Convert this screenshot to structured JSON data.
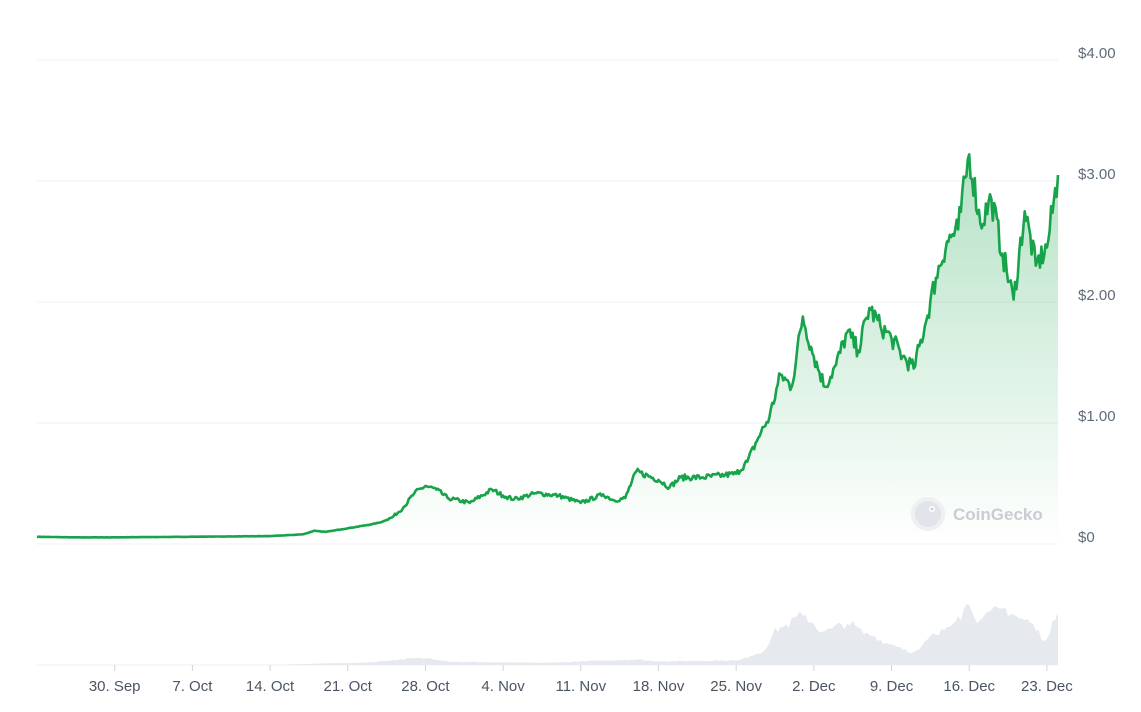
{
  "chart_data": {
    "type": "area",
    "watermark": "CoinGecko",
    "ylim": [
      0,
      4
    ],
    "y_ticks": [
      {
        "value": 0,
        "label": "$0"
      },
      {
        "value": 1,
        "label": "$1.00"
      },
      {
        "value": 2,
        "label": "$2.00"
      },
      {
        "value": 3,
        "label": "$3.00"
      },
      {
        "value": 4,
        "label": "$4.00"
      }
    ],
    "x_range": [
      "2024-09-23",
      "2024-12-24"
    ],
    "x_ticks": [
      {
        "date": "2024-09-30",
        "label": "30. Sep"
      },
      {
        "date": "2024-10-07",
        "label": "7. Oct"
      },
      {
        "date": "2024-10-14",
        "label": "14. Oct"
      },
      {
        "date": "2024-10-21",
        "label": "21. Oct"
      },
      {
        "date": "2024-10-28",
        "label": "28. Oct"
      },
      {
        "date": "2024-11-04",
        "label": "4. Nov"
      },
      {
        "date": "2024-11-11",
        "label": "11. Nov"
      },
      {
        "date": "2024-11-18",
        "label": "18. Nov"
      },
      {
        "date": "2024-11-25",
        "label": "25. Nov"
      },
      {
        "date": "2024-12-02",
        "label": "2. Dec"
      },
      {
        "date": "2024-12-09",
        "label": "9. Dec"
      },
      {
        "date": "2024-12-16",
        "label": "16. Dec"
      },
      {
        "date": "2024-12-23",
        "label": "23. Dec"
      }
    ],
    "grid": true,
    "colors": {
      "line": "#16a34a",
      "area_top": "#16a34a",
      "volume": "#e6e9ee",
      "grid": "#eef0f3"
    },
    "price_series": {
      "name": "",
      "points": [
        [
          "2024-09-23",
          0.06
        ],
        [
          "2024-09-26",
          0.055
        ],
        [
          "2024-09-30",
          0.055
        ],
        [
          "2024-10-07",
          0.06
        ],
        [
          "2024-10-14",
          0.065
        ],
        [
          "2024-10-17",
          0.08
        ],
        [
          "2024-10-18",
          0.11
        ],
        [
          "2024-10-19",
          0.1
        ],
        [
          "2024-10-21",
          0.13
        ],
        [
          "2024-10-23",
          0.16
        ],
        [
          "2024-10-24",
          0.18
        ],
        [
          "2024-10-25",
          0.22
        ],
        [
          "2024-10-26",
          0.3
        ],
        [
          "2024-10-27",
          0.42
        ],
        [
          "2024-10-28",
          0.48
        ],
        [
          "2024-10-29",
          0.45
        ],
        [
          "2024-10-30",
          0.38
        ],
        [
          "2024-11-01",
          0.34
        ],
        [
          "2024-11-03",
          0.45
        ],
        [
          "2024-11-04",
          0.4
        ],
        [
          "2024-11-05",
          0.37
        ],
        [
          "2024-11-07",
          0.42
        ],
        [
          "2024-11-09",
          0.4
        ],
        [
          "2024-11-11",
          0.34
        ],
        [
          "2024-11-13",
          0.41
        ],
        [
          "2024-11-14",
          0.36
        ],
        [
          "2024-11-15",
          0.38
        ],
        [
          "2024-11-16",
          0.6
        ],
        [
          "2024-11-18",
          0.53
        ],
        [
          "2024-11-19",
          0.47
        ],
        [
          "2024-11-20",
          0.55
        ],
        [
          "2024-11-22",
          0.55
        ],
        [
          "2024-11-24",
          0.57
        ],
        [
          "2024-11-25",
          0.58
        ],
        [
          "2024-11-26",
          0.68
        ],
        [
          "2024-11-27",
          0.88
        ],
        [
          "2024-11-28",
          1.05
        ],
        [
          "2024-11-29",
          1.4
        ],
        [
          "2024-11-30",
          1.3
        ],
        [
          "2024-12-01",
          1.88
        ],
        [
          "2024-12-02",
          1.55
        ],
        [
          "2024-12-03",
          1.3
        ],
        [
          "2024-12-04",
          1.48
        ],
        [
          "2024-12-05",
          1.75
        ],
        [
          "2024-12-06",
          1.6
        ],
        [
          "2024-12-07",
          1.95
        ],
        [
          "2024-12-08",
          1.8
        ],
        [
          "2024-12-09",
          1.7
        ],
        [
          "2024-12-10",
          1.55
        ],
        [
          "2024-12-11",
          1.45
        ],
        [
          "2024-12-12",
          1.8
        ],
        [
          "2024-12-13",
          2.2
        ],
        [
          "2024-12-14",
          2.5
        ],
        [
          "2024-12-15",
          2.6
        ],
        [
          "2024-12-16",
          3.22
        ],
        [
          "2024-12-17",
          2.65
        ],
        [
          "2024-12-18",
          2.85
        ],
        [
          "2024-12-19",
          2.4
        ],
        [
          "2024-12-20",
          2.02
        ],
        [
          "2024-12-21",
          2.75
        ],
        [
          "2024-12-22",
          2.3
        ],
        [
          "2024-12-23",
          2.45
        ],
        [
          "2024-12-24",
          3.05
        ]
      ]
    },
    "volume_series": {
      "name": "",
      "points": [
        [
          "2024-09-23",
          0
        ],
        [
          "2024-10-14",
          0.01
        ],
        [
          "2024-10-21",
          0.05
        ],
        [
          "2024-10-28",
          0.18
        ],
        [
          "2024-10-31",
          0.08
        ],
        [
          "2024-11-07",
          0.06
        ],
        [
          "2024-11-16",
          0.14
        ],
        [
          "2024-11-18",
          0.1
        ],
        [
          "2024-11-25",
          0.12
        ],
        [
          "2024-11-27",
          0.3
        ],
        [
          "2024-11-29",
          1.0
        ],
        [
          "2024-12-01",
          1.3
        ],
        [
          "2024-12-03",
          0.9
        ],
        [
          "2024-12-05",
          1.1
        ],
        [
          "2024-12-07",
          0.8
        ],
        [
          "2024-12-09",
          0.55
        ],
        [
          "2024-12-11",
          0.35
        ],
        [
          "2024-12-13",
          0.8
        ],
        [
          "2024-12-15",
          1.3
        ],
        [
          "2024-12-16",
          1.6
        ],
        [
          "2024-12-17",
          1.2
        ],
        [
          "2024-12-19",
          1.5
        ],
        [
          "2024-12-21",
          1.2
        ],
        [
          "2024-12-23",
          0.7
        ],
        [
          "2024-12-24",
          1.4
        ]
      ]
    }
  }
}
